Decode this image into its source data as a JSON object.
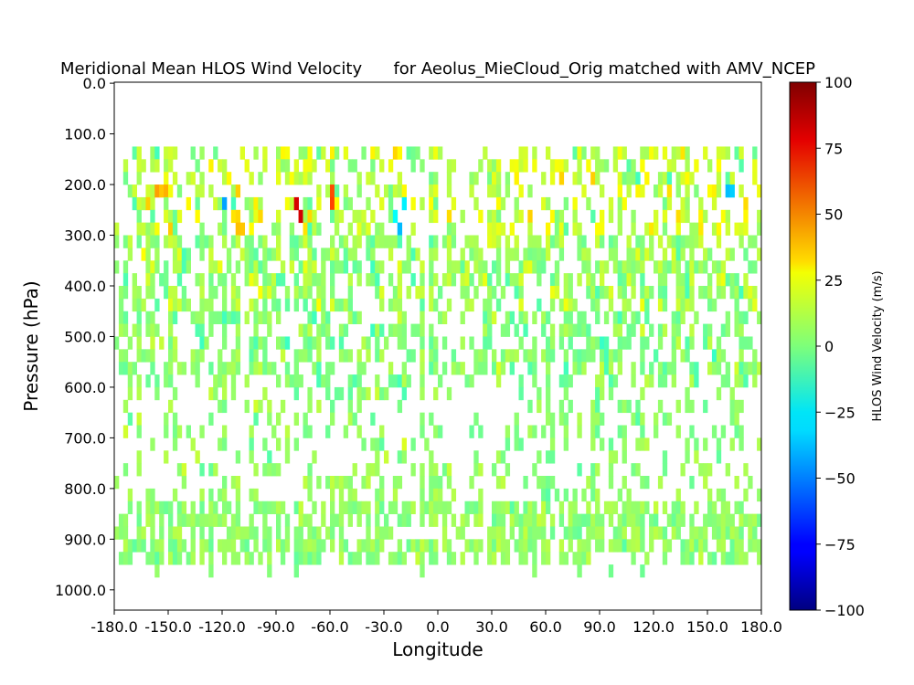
{
  "chart_data": {
    "type": "heatmap",
    "title": "Meridional Mean HLOS Wind Velocity      for Aeolus_MieCloud_Orig matched with AMV_NCEP",
    "xlabel": "Longitude",
    "ylabel": "Pressure (hPa)",
    "xlim": [
      -180,
      180
    ],
    "ylim": [
      1040,
      -2
    ],
    "y_inverted": true,
    "x_ticks": [
      "-180.0",
      "-150.0",
      "-120.0",
      "-90.0",
      "-60.0",
      "-30.0",
      "0.0",
      "30.0",
      "60.0",
      "90.0",
      "120.0",
      "150.0",
      "180.0"
    ],
    "y_ticks": [
      "0.0",
      "100.0",
      "200.0",
      "300.0",
      "400.0",
      "500.0",
      "600.0",
      "700.0",
      "800.0",
      "900.0",
      "1000.0"
    ],
    "grid": false,
    "colormap": "jet",
    "colorbar": {
      "label": "HLOS Wind Velocity (m/s)",
      "range": [
        -100,
        100
      ],
      "ticks": [
        "100",
        "75",
        "50",
        "25",
        "0",
        "−25",
        "−50",
        "−75",
        "−100"
      ]
    },
    "cell_width_deg": 2.5,
    "cell_height_hPa": 25,
    "data_extent": {
      "longitude": [
        -180,
        180
      ],
      "pressure": [
        125,
        975
      ]
    },
    "bands": [
      {
        "pressure": [
          125,
          300
        ],
        "coverage": 0.42,
        "mean": 12,
        "spread": 14
      },
      {
        "pressure": [
          300,
          450
        ],
        "coverage": 0.55,
        "mean": 5,
        "spread": 11
      },
      {
        "pressure": [
          450,
          600
        ],
        "coverage": 0.48,
        "mean": 2,
        "spread": 9
      },
      {
        "pressure": [
          600,
          825
        ],
        "coverage": 0.28,
        "mean": 3,
        "spread": 8
      },
      {
        "pressure": [
          825,
          950
        ],
        "coverage": 0.62,
        "mean": 4,
        "spread": 7
      },
      {
        "pressure": [
          950,
          975
        ],
        "coverage": 0.05,
        "mean": 3,
        "spread": 6
      }
    ],
    "jet_streaks": [
      {
        "longitude": [
          -82,
          -77
        ],
        "pressure": [
          200,
          275
        ],
        "value": 80
      },
      {
        "longitude": [
          -65,
          -58
        ],
        "pressure": [
          200,
          250
        ],
        "value": 65
      },
      {
        "longitude": [
          -118,
          -110
        ],
        "pressure": [
          225,
          300
        ],
        "value": 35
      },
      {
        "longitude": [
          -158,
          -148
        ],
        "pressure": [
          200,
          300
        ],
        "value": 40
      },
      {
        "longitude": [
          115,
          120
        ],
        "pressure": [
          225,
          275
        ],
        "value": 55
      },
      {
        "longitude": [
          -25,
          -18
        ],
        "pressure": [
          225,
          300
        ],
        "value": -30
      },
      {
        "longitude": [
          -120,
          -115
        ],
        "pressure": [
          200,
          250
        ],
        "value": -45
      },
      {
        "longitude": [
          160,
          164
        ],
        "pressure": [
          200,
          250
        ],
        "value": -40
      }
    ]
  }
}
